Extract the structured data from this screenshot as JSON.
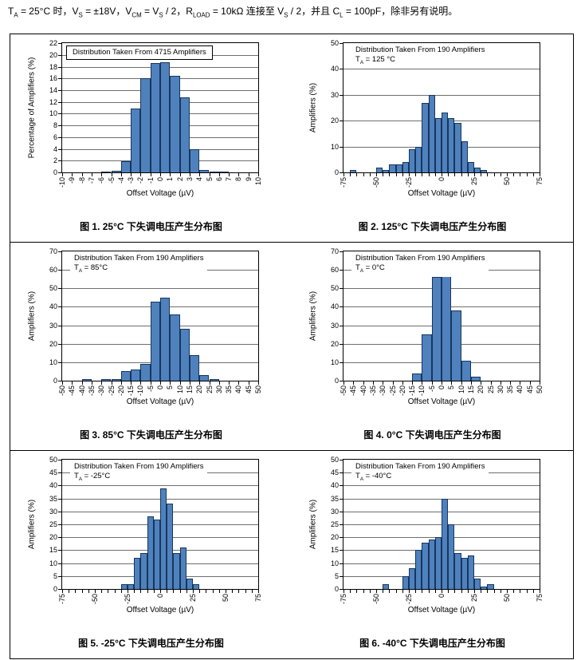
{
  "page": {
    "header_segments": [
      {
        "t": "T"
      },
      {
        "sub": "A"
      },
      {
        "t": " = 25°C 时，V"
      },
      {
        "sub": "S"
      },
      {
        "t": " = ±18V，V"
      },
      {
        "sub": "CM"
      },
      {
        "t": " = V"
      },
      {
        "sub": "S"
      },
      {
        "t": " / 2，R"
      },
      {
        "sub": "LOAD"
      },
      {
        "t": " = 10kΩ 连接至 V"
      },
      {
        "sub": "S"
      },
      {
        "t": " / 2，并且 C"
      },
      {
        "sub": "L"
      },
      {
        "t": " = 100pF，除非另有说明。"
      }
    ]
  },
  "colors": {
    "bar_fill": "#4f81bd",
    "bar_border": "#17365d",
    "gridline": "#6f6f6f",
    "axis": "#000000"
  },
  "chart_data": [
    {
      "type": "bar",
      "annotation_line1": "Distribution Taken From 4715 Amplifiers",
      "ta": null,
      "boxed_annotation": true,
      "ylabel": "Percentage of Amplifiers (%)",
      "xlabel": "Offset Voltage (µV)",
      "caption": "图 1. 25°C 下失调电压产生分布图",
      "ylim": [
        0,
        22
      ],
      "ytick_step": 2,
      "xlim": [
        -10,
        10
      ],
      "xtick_step": 1,
      "xlabel_every": 1,
      "bin_width": 1,
      "bins": [
        [
          -6,
          0.1
        ],
        [
          -5,
          0.3
        ],
        [
          -4,
          1.9
        ],
        [
          -3,
          10.9
        ],
        [
          -2,
          16
        ],
        [
          -1,
          18.6
        ],
        [
          0,
          18.7
        ],
        [
          1,
          16.4
        ],
        [
          2,
          12.7
        ],
        [
          3,
          3.9
        ],
        [
          4,
          0.4
        ],
        [
          5,
          0.2
        ],
        [
          6,
          0.1
        ]
      ],
      "grid": true,
      "legend_position": "top-left"
    },
    {
      "type": "bar",
      "annotation_line1": "Distribution Taken From 190 Amplifiers",
      "ta": {
        "base": "T",
        "sub": "A",
        "rest": " = 125 °C"
      },
      "boxed_annotation": false,
      "ylabel": "Amplifiers (%)",
      "xlabel": "Offset Voltage (µV)",
      "caption": "图 2. 125°C 下失调电压产生分布图",
      "ylim": [
        0,
        50
      ],
      "ytick_step": 10,
      "xlim": [
        -75,
        75
      ],
      "xtick_step": 5,
      "xlabel_every": 25,
      "bin_width": 5,
      "bins": [
        [
          -70,
          1
        ],
        [
          -50,
          2
        ],
        [
          -45,
          1
        ],
        [
          -40,
          3
        ],
        [
          -35,
          3
        ],
        [
          -30,
          4
        ],
        [
          -25,
          9
        ],
        [
          -20,
          10
        ],
        [
          -15,
          27
        ],
        [
          -10,
          30
        ],
        [
          -5,
          21
        ],
        [
          0,
          23
        ],
        [
          5,
          21
        ],
        [
          10,
          19
        ],
        [
          15,
          12
        ],
        [
          20,
          4
        ],
        [
          25,
          2
        ],
        [
          30,
          1
        ]
      ],
      "grid": true,
      "legend_position": "top-left"
    },
    {
      "type": "bar",
      "annotation_line1": "Distribution Taken From 190 Amplifiers",
      "ta": {
        "base": "T",
        "sub": "A",
        "rest": " = 85°C"
      },
      "boxed_annotation": false,
      "ylabel": "Amplifiers (%)",
      "xlabel": "Offset Voltage (µV)",
      "caption": "图 3. 85°C 下失调电压产生分布图",
      "ylim": [
        0,
        70
      ],
      "ytick_step": 10,
      "xlim": [
        -50,
        50
      ],
      "xtick_step": 5,
      "xlabel_every": 5,
      "bin_width": 5,
      "bins": [
        [
          -40,
          1
        ],
        [
          -30,
          1
        ],
        [
          -25,
          1
        ],
        [
          -20,
          5
        ],
        [
          -15,
          6
        ],
        [
          -10,
          9
        ],
        [
          -5,
          43
        ],
        [
          0,
          45
        ],
        [
          5,
          36
        ],
        [
          10,
          28
        ],
        [
          15,
          14
        ],
        [
          20,
          3
        ],
        [
          25,
          1
        ]
      ],
      "grid": true,
      "legend_position": "top-left"
    },
    {
      "type": "bar",
      "annotation_line1": "Distribution Taken From 190 Amplifiers",
      "ta": {
        "base": "T",
        "sub": "A",
        "rest": " = 0°C"
      },
      "boxed_annotation": false,
      "ylabel": "Amplifiers (%)",
      "xlabel": "Offset Voltage (µV)",
      "caption": "图 4. 0°C 下失调电压产生分布图",
      "ylim": [
        0,
        70
      ],
      "ytick_step": 10,
      "xlim": [
        -50,
        50
      ],
      "xtick_step": 5,
      "xlabel_every": 5,
      "bin_width": 5,
      "bins": [
        [
          -15,
          4
        ],
        [
          -10,
          25
        ],
        [
          -5,
          56
        ],
        [
          0,
          57
        ],
        [
          5,
          38
        ],
        [
          10,
          11
        ],
        [
          15,
          2
        ]
      ],
      "grid": true,
      "legend_position": "top-left"
    },
    {
      "type": "bar",
      "annotation_line1": "Distribution Taken From 190 Amplifiers",
      "ta": {
        "base": "T",
        "sub": "A",
        "rest": " = -25°C"
      },
      "boxed_annotation": false,
      "ylabel": "Amplifiers (%)",
      "xlabel": "Offset Voltage (µV)",
      "caption": "图 5. -25°C 下失调电压产生分布图",
      "ylim": [
        0,
        50
      ],
      "ytick_step": 5,
      "xlim": [
        -75,
        75
      ],
      "xtick_step": 5,
      "xlabel_every": 25,
      "bin_width": 5,
      "bins": [
        [
          -30,
          2
        ],
        [
          -25,
          2
        ],
        [
          -20,
          12
        ],
        [
          -15,
          14
        ],
        [
          -10,
          28
        ],
        [
          -5,
          27
        ],
        [
          0,
          39
        ],
        [
          5,
          33
        ],
        [
          10,
          14
        ],
        [
          15,
          16
        ],
        [
          20,
          4
        ],
        [
          25,
          2
        ]
      ],
      "grid": true,
      "legend_position": "top-left"
    },
    {
      "type": "bar",
      "annotation_line1": "Distribution Taken From 190 Amplifiers",
      "ta": {
        "base": "T",
        "sub": "A",
        "rest": " = -40°C"
      },
      "boxed_annotation": false,
      "ylabel": "Amplifiers (%)",
      "xlabel": "Offset Voltage (µV)",
      "caption": "图 6. -40°C 下失调电压产生分布图",
      "ylim": [
        0,
        50
      ],
      "ytick_step": 5,
      "xlim": [
        -75,
        75
      ],
      "xtick_step": 5,
      "xlabel_every": 25,
      "bin_width": 5,
      "bins": [
        [
          -45,
          2
        ],
        [
          -30,
          5
        ],
        [
          -25,
          8
        ],
        [
          -20,
          15
        ],
        [
          -15,
          18
        ],
        [
          -10,
          19
        ],
        [
          -5,
          20
        ],
        [
          0,
          35
        ],
        [
          5,
          25
        ],
        [
          10,
          14
        ],
        [
          15,
          12
        ],
        [
          20,
          13
        ],
        [
          25,
          4
        ],
        [
          30,
          1
        ],
        [
          35,
          2
        ]
      ],
      "grid": true,
      "legend_position": "top-left"
    }
  ]
}
